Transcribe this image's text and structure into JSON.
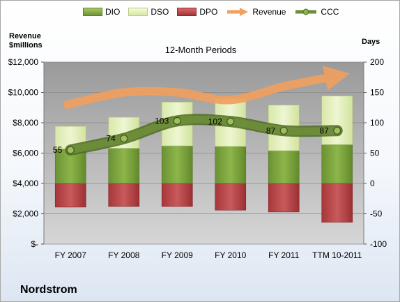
{
  "chart_data": {
    "type": "bar",
    "title": "12-Month Periods",
    "company": "Nordstrom",
    "left_axis_label": "Revenue\n$millions",
    "right_axis_label": "Days",
    "categories": [
      "FY 2007",
      "FY 2008",
      "FY 2009",
      "FY 2010",
      "FY 2011",
      "TTM 10-2011"
    ],
    "left_ticks": [
      "$12,000",
      "$10,000",
      "$8,000",
      "$6,000",
      "$4,000",
      "$2,000",
      "$-"
    ],
    "right_ticks": [
      "200",
      "150",
      "100",
      "50",
      "0",
      "-50",
      "-100"
    ],
    "left_ylim": [
      0,
      12000
    ],
    "right_ylim": [
      -100,
      200
    ],
    "grid": true,
    "legend_position": "top",
    "series": [
      {
        "name": "DIO",
        "type": "stacked-bar",
        "axis": "right",
        "color": "#7aa33c",
        "values": [
          57,
          58,
          62,
          61,
          54,
          64
        ]
      },
      {
        "name": "DSO",
        "type": "stacked-bar",
        "axis": "right",
        "color": "#e2efb8",
        "values": [
          37,
          51,
          72,
          79,
          75,
          80
        ]
      },
      {
        "name": "DPO",
        "type": "stacked-bar",
        "axis": "right",
        "color": "#b84a4c",
        "values": [
          -39,
          -38,
          -38,
          -44,
          -47,
          -64
        ]
      },
      {
        "name": "Revenue",
        "type": "line",
        "axis": "left",
        "color": "#f0a060",
        "values": [
          9200,
          10000,
          10000,
          9500,
          10400,
          11000
        ]
      },
      {
        "name": "CCC",
        "type": "line",
        "axis": "right",
        "color": "#6d8c3a",
        "values": [
          55,
          74,
          103,
          102,
          87,
          87
        ],
        "labels": [
          "55",
          "74",
          "103",
          "102",
          "87",
          "87"
        ]
      }
    ]
  }
}
